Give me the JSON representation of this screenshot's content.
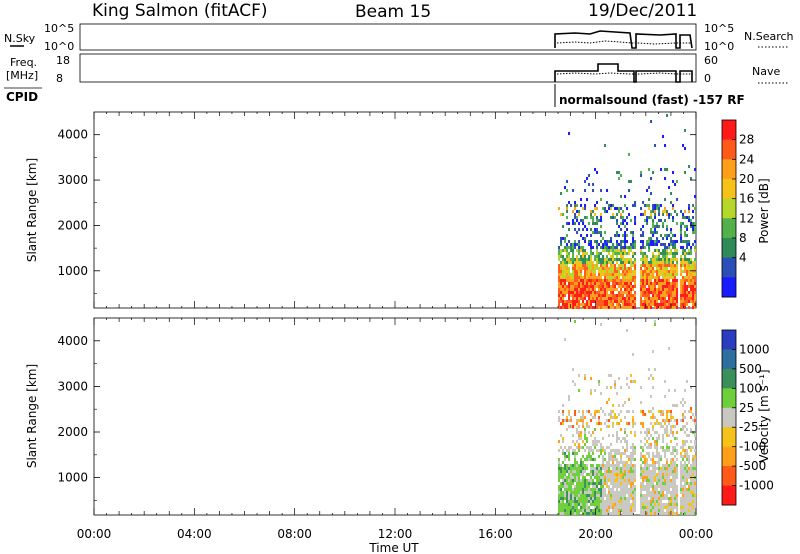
{
  "header": {
    "station": "King Salmon (fitACF)",
    "beam": "Beam 15",
    "date": "19/Dec/2011"
  },
  "strips": {
    "nsky_label": "N.Sky",
    "nsky_ticks": [
      "10^5",
      "10^0"
    ],
    "nsearch_label": "N.Search",
    "nsearch_ticks": [
      "10^5",
      "10^0"
    ],
    "freq_label_1": "Freq.",
    "freq_label_2": "[MHz]",
    "freq_ticks": [
      "18",
      "8"
    ],
    "nave_label": "Nave",
    "nave_ticks": [
      "60",
      "0"
    ],
    "cpid_label": "CPID",
    "cpid_text": "normalsound (fast) -157 RF"
  },
  "chart_data": [
    {
      "type": "heatmap",
      "panel": "power",
      "ylabel": "Slant Range [km]",
      "ylim": [
        180,
        4500
      ],
      "yticks": [
        1000,
        2000,
        3000,
        4000
      ],
      "xlim": [
        0,
        24
      ],
      "data_start_hour": 18.5,
      "data_end_hour": 24,
      "colorbar": {
        "label": "Power [dB]",
        "ticks": [
          "28",
          "24",
          "20",
          "16",
          "12",
          "8",
          "4"
        ],
        "colors": [
          "#ff1a1a",
          "#ff5a1a",
          "#ff9f1a",
          "#f5c21a",
          "#b6d62a",
          "#53b04a",
          "#2f8a5a",
          "#2b4fb8",
          "#1a1aff"
        ]
      }
    },
    {
      "type": "heatmap",
      "panel": "velocity",
      "ylabel": "Slant Range [km]",
      "ylim": [
        180,
        4500
      ],
      "yticks": [
        1000,
        2000,
        3000,
        4000
      ],
      "xlim": [
        0,
        24
      ],
      "data_start_hour": 18.5,
      "data_end_hour": 24,
      "colorbar": {
        "label": "Velocity [m s⁻¹]",
        "ticks": [
          "1000",
          "500",
          "100",
          "25",
          "-25",
          "-100",
          "-500",
          "-1000"
        ],
        "colors": [
          "#2a3cc0",
          "#2f6fa0",
          "#3a8f5a",
          "#6fcf3a",
          "#c8c8c0",
          "#f5c21a",
          "#ff9f1a",
          "#ff5a1a",
          "#ff1a1a"
        ]
      }
    }
  ],
  "xaxis": {
    "label": "Time UT",
    "ticks": [
      "00:00",
      "04:00",
      "08:00",
      "12:00",
      "16:00",
      "20:00",
      "00:00"
    ]
  }
}
